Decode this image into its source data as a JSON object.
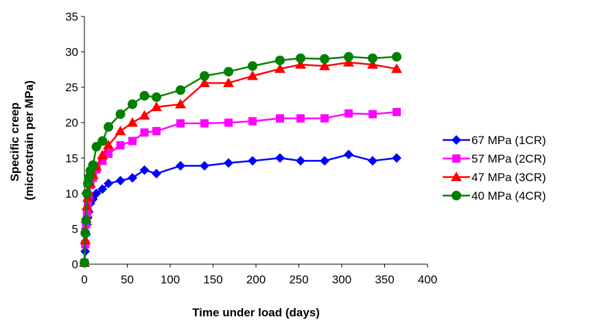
{
  "chart_data": {
    "type": "line",
    "xlabel": "Time under load (days)",
    "ylabel_lines": [
      "Specific creep",
      "(microstrain per MPa)"
    ],
    "xlim": [
      0,
      400
    ],
    "ylim": [
      0,
      35
    ],
    "x_ticks": [
      0,
      50,
      100,
      150,
      200,
      250,
      300,
      350,
      400
    ],
    "y_ticks": [
      0,
      5,
      10,
      15,
      20,
      25,
      30,
      35
    ],
    "grid": false,
    "legend_position": "right",
    "series": [
      {
        "name": "67 MPa (1CR)",
        "color": "#0000ff",
        "marker": "diamond",
        "points": [
          [
            0,
            0.2
          ],
          [
            1,
            1.8
          ],
          [
            2,
            4.2
          ],
          [
            3,
            5.6
          ],
          [
            4,
            6.6
          ],
          [
            5,
            7.4
          ],
          [
            7,
            8.6
          ],
          [
            10,
            9.2
          ],
          [
            14,
            10.0
          ],
          [
            21,
            10.6
          ],
          [
            28,
            11.4
          ],
          [
            42,
            11.8
          ],
          [
            56,
            12.2
          ],
          [
            70,
            13.3
          ],
          [
            84,
            12.8
          ],
          [
            112,
            13.9
          ],
          [
            140,
            13.9
          ],
          [
            168,
            14.3
          ],
          [
            196,
            14.6
          ],
          [
            228,
            15.0
          ],
          [
            252,
            14.6
          ],
          [
            280,
            14.6
          ],
          [
            308,
            15.5
          ],
          [
            336,
            14.6
          ],
          [
            364,
            15.0
          ]
        ]
      },
      {
        "name": "57 MPa (2CR)",
        "color": "#ff00ff",
        "marker": "square",
        "points": [
          [
            0,
            0.2
          ],
          [
            1,
            2.8
          ],
          [
            2,
            5.6
          ],
          [
            3,
            7.2
          ],
          [
            4,
            8.6
          ],
          [
            5,
            9.6
          ],
          [
            7,
            11.2
          ],
          [
            10,
            12.2
          ],
          [
            14,
            13.4
          ],
          [
            21,
            14.6
          ],
          [
            28,
            15.6
          ],
          [
            42,
            16.8
          ],
          [
            56,
            17.4
          ],
          [
            70,
            18.6
          ],
          [
            84,
            18.8
          ],
          [
            112,
            19.9
          ],
          [
            140,
            19.9
          ],
          [
            168,
            20.0
          ],
          [
            196,
            20.2
          ],
          [
            228,
            20.6
          ],
          [
            252,
            20.6
          ],
          [
            280,
            20.6
          ],
          [
            308,
            21.3
          ],
          [
            336,
            21.2
          ],
          [
            364,
            21.5
          ]
        ]
      },
      {
        "name": "47 MPa (3CR)",
        "color": "#ff0000",
        "marker": "triangle",
        "points": [
          [
            0,
            0.2
          ],
          [
            1,
            3.4
          ],
          [
            2,
            6.4
          ],
          [
            3,
            8.2
          ],
          [
            4,
            9.4
          ],
          [
            5,
            10.2
          ],
          [
            7,
            11.4
          ],
          [
            10,
            12.6
          ],
          [
            14,
            13.8
          ],
          [
            21,
            15.4
          ],
          [
            28,
            16.8
          ],
          [
            42,
            18.8
          ],
          [
            56,
            20.0
          ],
          [
            70,
            21.0
          ],
          [
            84,
            22.2
          ],
          [
            112,
            22.6
          ],
          [
            140,
            25.6
          ],
          [
            168,
            25.6
          ],
          [
            196,
            26.6
          ],
          [
            228,
            27.6
          ],
          [
            252,
            28.2
          ],
          [
            280,
            28.0
          ],
          [
            308,
            28.5
          ],
          [
            336,
            28.2
          ],
          [
            364,
            27.6
          ]
        ]
      },
      {
        "name": "40 MPa (4CR)",
        "color": "#008000",
        "marker": "circle",
        "points": [
          [
            0,
            0.2
          ],
          [
            1,
            4.4
          ],
          [
            2,
            6.2
          ],
          [
            3,
            10.0
          ],
          [
            4,
            11.4
          ],
          [
            5,
            12.2
          ],
          [
            7,
            13.2
          ],
          [
            10,
            14.0
          ],
          [
            14,
            16.6
          ],
          [
            21,
            17.4
          ],
          [
            28,
            19.4
          ],
          [
            42,
            21.2
          ],
          [
            56,
            22.6
          ],
          [
            70,
            23.8
          ],
          [
            84,
            23.6
          ],
          [
            112,
            24.6
          ],
          [
            140,
            26.6
          ],
          [
            168,
            27.2
          ],
          [
            196,
            28.0
          ],
          [
            228,
            28.8
          ],
          [
            252,
            29.1
          ],
          [
            280,
            29.0
          ],
          [
            308,
            29.3
          ],
          [
            336,
            29.1
          ],
          [
            364,
            29.3
          ]
        ]
      }
    ]
  }
}
